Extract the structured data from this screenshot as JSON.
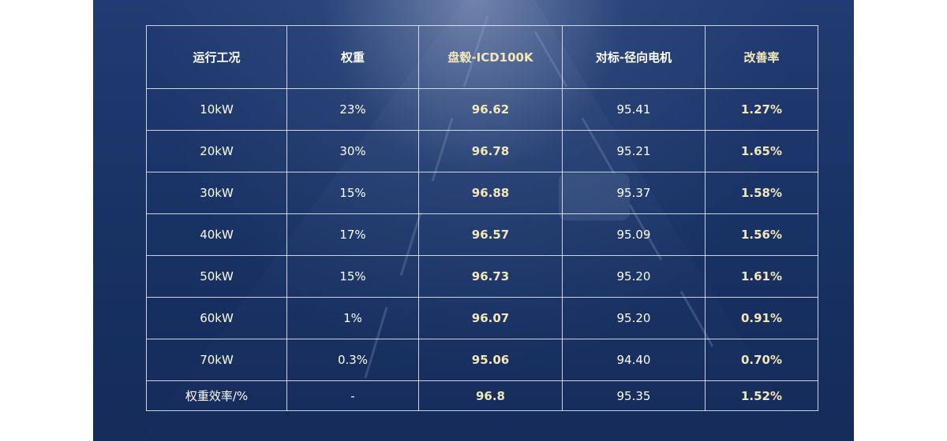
{
  "table": {
    "headers": [
      "运行工况",
      "权重",
      "盘毂-ICD100K",
      "对标-径向电机",
      "改善率"
    ],
    "rows": [
      [
        "10kW",
        "23%",
        "96.62",
        "95.41",
        "1.27%"
      ],
      [
        "20kW",
        "30%",
        "96.78",
        "95.21",
        "1.65%"
      ],
      [
        "30kW",
        "15%",
        "96.88",
        "95.37",
        "1.58%"
      ],
      [
        "40kW",
        "17%",
        "96.57",
        "95.09",
        "1.56%"
      ],
      [
        "50kW",
        "15%",
        "96.73",
        "95.20",
        "1.61%"
      ],
      [
        "60kW",
        "1%",
        "96.07",
        "95.20",
        "0.91%"
      ],
      [
        "70kW",
        "0.3%",
        "95.06",
        "94.40",
        "0.70%"
      ],
      [
        "权重效率/%",
        "-",
        "96.8",
        "95.35",
        "1.52%"
      ]
    ]
  },
  "colors": {
    "background": "#1a3468",
    "highlight_text": "#f3e7b8",
    "text": "#ffffff",
    "border": "#ebf0fa"
  }
}
